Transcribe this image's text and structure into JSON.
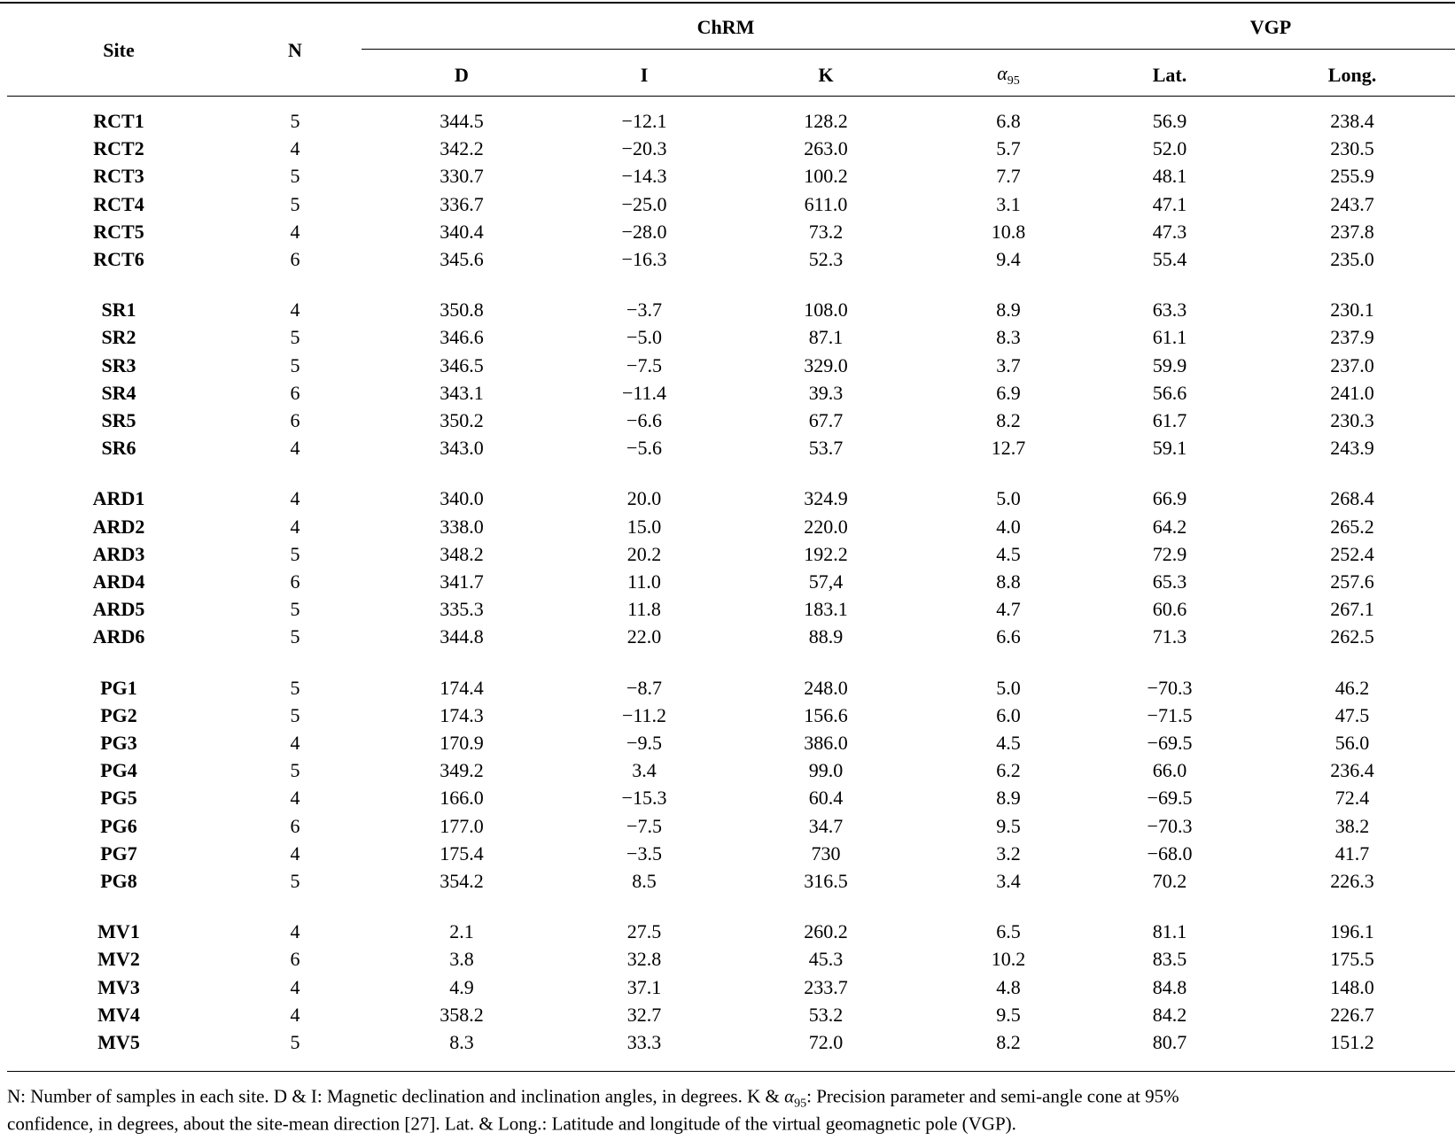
{
  "table": {
    "header": {
      "site": "Site",
      "n": "N",
      "chrm": "ChRM",
      "vgp": "VGP",
      "d": "D",
      "i": "I",
      "k": "K",
      "alpha": {
        "symbol": "α",
        "subscript": "95"
      },
      "lat": "Lat.",
      "long": "Long."
    },
    "groups": [
      [
        [
          "RCT1",
          "5",
          "344.5",
          "−12.1",
          "128.2",
          "6.8",
          "56.9",
          "238.4"
        ],
        [
          "RCT2",
          "4",
          "342.2",
          "−20.3",
          "263.0",
          "5.7",
          "52.0",
          "230.5"
        ],
        [
          "RCT3",
          "5",
          "330.7",
          "−14.3",
          "100.2",
          "7.7",
          "48.1",
          "255.9"
        ],
        [
          "RCT4",
          "5",
          "336.7",
          "−25.0",
          "611.0",
          "3.1",
          "47.1",
          "243.7"
        ],
        [
          "RCT5",
          "4",
          "340.4",
          "−28.0",
          "73.2",
          "10.8",
          "47.3",
          "237.8"
        ],
        [
          "RCT6",
          "6",
          "345.6",
          "−16.3",
          "52.3",
          "9.4",
          "55.4",
          "235.0"
        ]
      ],
      [
        [
          "SR1",
          "4",
          "350.8",
          "−3.7",
          "108.0",
          "8.9",
          "63.3",
          "230.1"
        ],
        [
          "SR2",
          "5",
          "346.6",
          "−5.0",
          "87.1",
          "8.3",
          "61.1",
          "237.9"
        ],
        [
          "SR3",
          "5",
          "346.5",
          "−7.5",
          "329.0",
          "3.7",
          "59.9",
          "237.0"
        ],
        [
          "SR4",
          "6",
          "343.1",
          "−11.4",
          "39.3",
          "6.9",
          "56.6",
          "241.0"
        ],
        [
          "SR5",
          "6",
          "350.2",
          "−6.6",
          "67.7",
          "8.2",
          "61.7",
          "230.3"
        ],
        [
          "SR6",
          "4",
          "343.0",
          "−5.6",
          "53.7",
          "12.7",
          "59.1",
          "243.9"
        ]
      ],
      [
        [
          "ARD1",
          "4",
          "340.0",
          "20.0",
          "324.9",
          "5.0",
          "66.9",
          "268.4"
        ],
        [
          "ARD2",
          "4",
          "338.0",
          "15.0",
          "220.0",
          "4.0",
          "64.2",
          "265.2"
        ],
        [
          "ARD3",
          "5",
          "348.2",
          "20.2",
          "192.2",
          "4.5",
          "72.9",
          "252.4"
        ],
        [
          "ARD4",
          "6",
          "341.7",
          "11.0",
          "57,4",
          "8.8",
          "65.3",
          "257.6"
        ],
        [
          "ARD5",
          "5",
          "335.3",
          "11.8",
          "183.1",
          "4.7",
          "60.6",
          "267.1"
        ],
        [
          "ARD6",
          "5",
          "344.8",
          "22.0",
          "88.9",
          "6.6",
          "71.3",
          "262.5"
        ]
      ],
      [
        [
          "PG1",
          "5",
          "174.4",
          "−8.7",
          "248.0",
          "5.0",
          "−70.3",
          "46.2"
        ],
        [
          "PG2",
          "5",
          "174.3",
          "−11.2",
          "156.6",
          "6.0",
          "−71.5",
          "47.5"
        ],
        [
          "PG3",
          "4",
          "170.9",
          "−9.5",
          "386.0",
          "4.5",
          "−69.5",
          "56.0"
        ],
        [
          "PG4",
          "5",
          "349.2",
          "3.4",
          "99.0",
          "6.2",
          "66.0",
          "236.4"
        ],
        [
          "PG5",
          "4",
          "166.0",
          "−15.3",
          "60.4",
          "8.9",
          "−69.5",
          "72.4"
        ],
        [
          "PG6",
          "6",
          "177.0",
          "−7.5",
          "34.7",
          "9.5",
          "−70.3",
          "38.2"
        ],
        [
          "PG7",
          "4",
          "175.4",
          "−3.5",
          "730",
          "3.2",
          "−68.0",
          "41.7"
        ],
        [
          "PG8",
          "5",
          "354.2",
          "8.5",
          "316.5",
          "3.4",
          "70.2",
          "226.3"
        ]
      ],
      [
        [
          "MV1",
          "4",
          "2.1",
          "27.5",
          "260.2",
          "6.5",
          "81.1",
          "196.1"
        ],
        [
          "MV2",
          "6",
          "3.8",
          "32.8",
          "45.3",
          "10.2",
          "83.5",
          "175.5"
        ],
        [
          "MV3",
          "4",
          "4.9",
          "37.1",
          "233.7",
          "4.8",
          "84.8",
          "148.0"
        ],
        [
          "MV4",
          "4",
          "358.2",
          "32.7",
          "53.2",
          "9.5",
          "84.2",
          "226.7"
        ],
        [
          "MV5",
          "5",
          "8.3",
          "33.3",
          "72.0",
          "8.2",
          "80.7",
          "151.2"
        ]
      ]
    ]
  },
  "footnote": {
    "line1": [
      "N: Number of samples in each site. D & I: Magnetic declination and inclination angles, in degrees. K & ",
      "α",
      "95",
      ": Precision parameter and semi-angle cone at 95%"
    ],
    "line2": "confidence, in degrees, about the site-mean direction [27]. Lat. & Long.: Latitude and longitude of the virtual geomagnetic pole (VGP)."
  }
}
